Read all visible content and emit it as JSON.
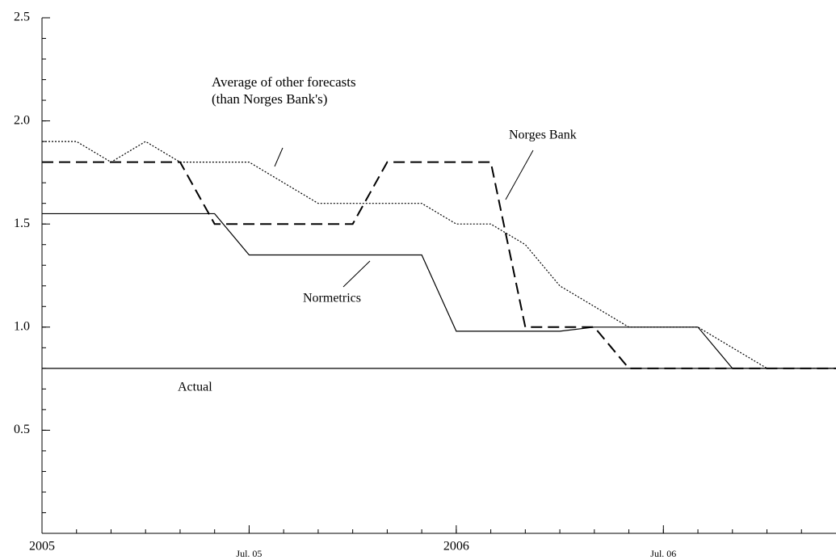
{
  "chart_data": {
    "type": "line",
    "x": [
      0,
      1,
      2,
      3,
      4,
      5,
      6,
      7,
      8,
      9,
      10,
      11,
      12,
      13,
      14,
      15,
      16,
      17,
      18,
      19,
      20,
      21,
      22,
      23
    ],
    "xlim": [
      0,
      23
    ],
    "xticks": [
      {
        "value": 0,
        "label": "2005"
      },
      {
        "value": 6,
        "label": "Jul. 05"
      },
      {
        "value": 12,
        "label": "2006"
      },
      {
        "value": 18,
        "label": "Jul. 06"
      }
    ],
    "ylim": [
      0,
      2.5
    ],
    "yticks": [
      0.5,
      {
        "value": 1,
        "label": "1.0"
      },
      1.5,
      {
        "value": 2,
        "label": "2.0"
      },
      2.5
    ],
    "series": [
      {
        "name": "Average of other forecasts (than Norges Bank's)",
        "color": "#000000",
        "dash": "dotted",
        "values": [
          1.9,
          1.9,
          1.8,
          1.9,
          1.8,
          1.8,
          1.8,
          1.7,
          1.6,
          1.6,
          1.6,
          1.6,
          1.5,
          1.5,
          1.4,
          1.2,
          1.1,
          1.0,
          1.0,
          1.0,
          0.9,
          0.8,
          0.8,
          0.8
        ]
      },
      {
        "name": "Norges Bank",
        "color": "#000000",
        "dash": "dashed",
        "values": [
          1.8,
          1.8,
          1.8,
          1.8,
          1.8,
          1.5,
          1.5,
          1.5,
          1.5,
          1.5,
          1.8,
          1.8,
          1.8,
          1.8,
          1.0,
          1.0,
          1.0,
          0.8,
          0.8,
          0.8,
          0.8,
          0.8,
          0.8,
          0.8
        ]
      },
      {
        "name": "Normetrics",
        "color": "#000000",
        "dash": "solid",
        "values": [
          1.55,
          1.55,
          1.55,
          1.55,
          1.55,
          1.55,
          1.35,
          1.35,
          1.35,
          1.35,
          1.35,
          1.35,
          0.98,
          0.98,
          0.98,
          0.98,
          1.0,
          1.0,
          1.0,
          1.0,
          0.8,
          0.8,
          0.8,
          0.8
        ]
      },
      {
        "name": "Actual",
        "color": "#000000",
        "dash": "solid",
        "values": [
          0.8,
          0.8,
          0.8,
          0.8,
          0.8,
          0.8,
          0.8,
          0.8,
          0.8,
          0.8,
          0.8,
          0.8,
          0.8,
          0.8,
          0.8,
          0.8,
          0.8,
          0.8,
          0.8,
          0.8,
          0.8,
          0.8,
          0.8,
          0.8
        ]
      }
    ]
  }
}
